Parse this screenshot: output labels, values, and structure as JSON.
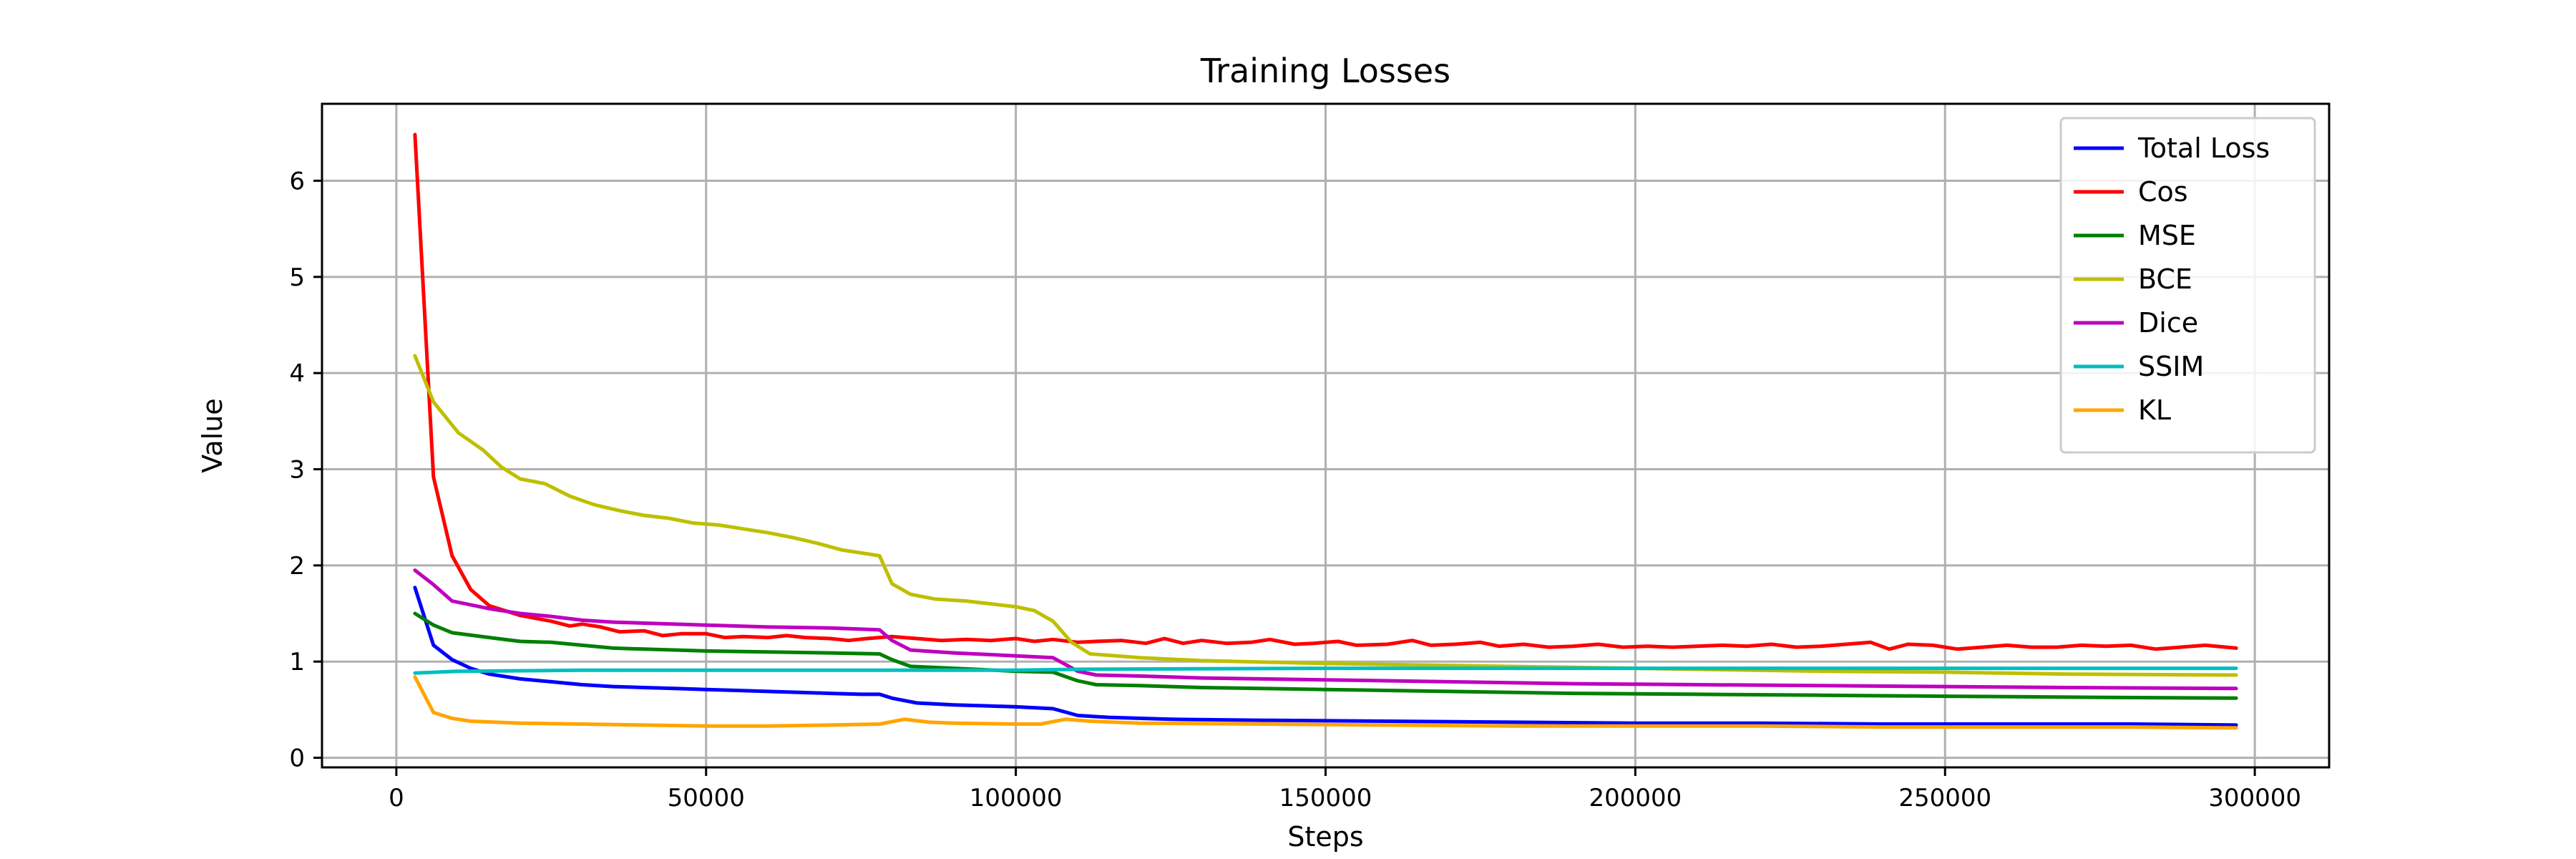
{
  "chart_data": {
    "type": "line",
    "title": "Training Losses",
    "xlabel": "Steps",
    "ylabel": "Value",
    "xlim": [
      -12000,
      312000
    ],
    "ylim": [
      -0.1,
      6.8
    ],
    "xticks": [
      0,
      50000,
      100000,
      150000,
      200000,
      250000,
      300000
    ],
    "xtick_labels": [
      "0",
      "50000",
      "100000",
      "150000",
      "200000",
      "250000",
      "300000"
    ],
    "yticks": [
      0,
      1,
      2,
      3,
      4,
      5,
      6
    ],
    "ytick_labels": [
      "0",
      "1",
      "2",
      "3",
      "4",
      "5",
      "6"
    ],
    "grid": true,
    "legend_position": "top-right",
    "series": [
      {
        "name": "Total Loss",
        "color": "#0000ff",
        "points": [
          [
            3000,
            1.77
          ],
          [
            6000,
            1.17
          ],
          [
            9000,
            1.02
          ],
          [
            12000,
            0.93
          ],
          [
            15000,
            0.87
          ],
          [
            20000,
            0.82
          ],
          [
            25000,
            0.79
          ],
          [
            30000,
            0.76
          ],
          [
            35000,
            0.74
          ],
          [
            40000,
            0.73
          ],
          [
            45000,
            0.72
          ],
          [
            50000,
            0.71
          ],
          [
            55000,
            0.7
          ],
          [
            60000,
            0.69
          ],
          [
            65000,
            0.68
          ],
          [
            70000,
            0.67
          ],
          [
            75000,
            0.66
          ],
          [
            78000,
            0.66
          ],
          [
            80000,
            0.62
          ],
          [
            84000,
            0.57
          ],
          [
            90000,
            0.55
          ],
          [
            95000,
            0.54
          ],
          [
            100000,
            0.53
          ],
          [
            106000,
            0.51
          ],
          [
            110000,
            0.44
          ],
          [
            115000,
            0.42
          ],
          [
            125000,
            0.4
          ],
          [
            140000,
            0.39
          ],
          [
            160000,
            0.38
          ],
          [
            180000,
            0.37
          ],
          [
            200000,
            0.36
          ],
          [
            220000,
            0.36
          ],
          [
            240000,
            0.35
          ],
          [
            260000,
            0.35
          ],
          [
            280000,
            0.35
          ],
          [
            297000,
            0.34
          ]
        ]
      },
      {
        "name": "Cos",
        "color": "#ff0000",
        "points": [
          [
            3000,
            6.48
          ],
          [
            6000,
            2.92
          ],
          [
            9000,
            2.1
          ],
          [
            12000,
            1.75
          ],
          [
            15000,
            1.58
          ],
          [
            20000,
            1.48
          ],
          [
            25000,
            1.42
          ],
          [
            28000,
            1.37
          ],
          [
            30000,
            1.39
          ],
          [
            33000,
            1.36
          ],
          [
            36000,
            1.31
          ],
          [
            40000,
            1.32
          ],
          [
            43000,
            1.27
          ],
          [
            46000,
            1.29
          ],
          [
            50000,
            1.29
          ],
          [
            53000,
            1.25
          ],
          [
            56000,
            1.26
          ],
          [
            60000,
            1.25
          ],
          [
            63000,
            1.27
          ],
          [
            66000,
            1.25
          ],
          [
            70000,
            1.24
          ],
          [
            73000,
            1.22
          ],
          [
            76000,
            1.24
          ],
          [
            80000,
            1.26
          ],
          [
            84000,
            1.24
          ],
          [
            88000,
            1.22
          ],
          [
            92000,
            1.23
          ],
          [
            96000,
            1.22
          ],
          [
            100000,
            1.24
          ],
          [
            103000,
            1.21
          ],
          [
            106000,
            1.23
          ],
          [
            110000,
            1.2
          ],
          [
            113000,
            1.21
          ],
          [
            117000,
            1.22
          ],
          [
            121000,
            1.19
          ],
          [
            124000,
            1.24
          ],
          [
            127000,
            1.19
          ],
          [
            130000,
            1.22
          ],
          [
            134000,
            1.19
          ],
          [
            138000,
            1.2
          ],
          [
            141000,
            1.23
          ],
          [
            145000,
            1.18
          ],
          [
            148000,
            1.19
          ],
          [
            152000,
            1.21
          ],
          [
            155000,
            1.17
          ],
          [
            160000,
            1.18
          ],
          [
            164000,
            1.22
          ],
          [
            167000,
            1.17
          ],
          [
            171000,
            1.18
          ],
          [
            175000,
            1.2
          ],
          [
            178000,
            1.16
          ],
          [
            182000,
            1.18
          ],
          [
            186000,
            1.15
          ],
          [
            190000,
            1.16
          ],
          [
            194000,
            1.18
          ],
          [
            198000,
            1.15
          ],
          [
            202000,
            1.16
          ],
          [
            206000,
            1.15
          ],
          [
            210000,
            1.16
          ],
          [
            214000,
            1.17
          ],
          [
            218000,
            1.16
          ],
          [
            222000,
            1.18
          ],
          [
            226000,
            1.15
          ],
          [
            230000,
            1.16
          ],
          [
            234000,
            1.18
          ],
          [
            238000,
            1.2
          ],
          [
            241000,
            1.13
          ],
          [
            244000,
            1.18
          ],
          [
            248000,
            1.17
          ],
          [
            252000,
            1.13
          ],
          [
            256000,
            1.15
          ],
          [
            260000,
            1.17
          ],
          [
            264000,
            1.15
          ],
          [
            268000,
            1.15
          ],
          [
            272000,
            1.17
          ],
          [
            276000,
            1.16
          ],
          [
            280000,
            1.17
          ],
          [
            284000,
            1.13
          ],
          [
            288000,
            1.15
          ],
          [
            292000,
            1.17
          ],
          [
            297000,
            1.14
          ]
        ]
      },
      {
        "name": "MSE",
        "color": "#008000",
        "points": [
          [
            3000,
            1.5
          ],
          [
            6000,
            1.38
          ],
          [
            9000,
            1.3
          ],
          [
            15000,
            1.25
          ],
          [
            20000,
            1.21
          ],
          [
            25000,
            1.2
          ],
          [
            30000,
            1.17
          ],
          [
            35000,
            1.14
          ],
          [
            40000,
            1.13
          ],
          [
            50000,
            1.11
          ],
          [
            60000,
            1.1
          ],
          [
            70000,
            1.09
          ],
          [
            78000,
            1.08
          ],
          [
            80000,
            1.02
          ],
          [
            83000,
            0.95
          ],
          [
            90000,
            0.93
          ],
          [
            100000,
            0.9
          ],
          [
            106000,
            0.89
          ],
          [
            110000,
            0.8
          ],
          [
            113000,
            0.76
          ],
          [
            120000,
            0.75
          ],
          [
            130000,
            0.73
          ],
          [
            150000,
            0.71
          ],
          [
            170000,
            0.69
          ],
          [
            190000,
            0.67
          ],
          [
            210000,
            0.66
          ],
          [
            230000,
            0.65
          ],
          [
            250000,
            0.64
          ],
          [
            270000,
            0.63
          ],
          [
            297000,
            0.62
          ]
        ]
      },
      {
        "name": "BCE",
        "color": "#bfbf00",
        "points": [
          [
            3000,
            4.18
          ],
          [
            6000,
            3.7
          ],
          [
            10000,
            3.38
          ],
          [
            14000,
            3.2
          ],
          [
            17000,
            3.02
          ],
          [
            20000,
            2.9
          ],
          [
            24000,
            2.85
          ],
          [
            28000,
            2.72
          ],
          [
            32000,
            2.63
          ],
          [
            36000,
            2.57
          ],
          [
            40000,
            2.52
          ],
          [
            44000,
            2.49
          ],
          [
            48000,
            2.44
          ],
          [
            52000,
            2.42
          ],
          [
            56000,
            2.38
          ],
          [
            60000,
            2.34
          ],
          [
            64000,
            2.29
          ],
          [
            68000,
            2.23
          ],
          [
            72000,
            2.16
          ],
          [
            76000,
            2.12
          ],
          [
            78000,
            2.1
          ],
          [
            80000,
            1.81
          ],
          [
            83000,
            1.7
          ],
          [
            87000,
            1.65
          ],
          [
            92000,
            1.63
          ],
          [
            96000,
            1.6
          ],
          [
            100000,
            1.57
          ],
          [
            103000,
            1.53
          ],
          [
            106000,
            1.42
          ],
          [
            109000,
            1.2
          ],
          [
            112000,
            1.08
          ],
          [
            120000,
            1.04
          ],
          [
            130000,
            1.01
          ],
          [
            150000,
            0.98
          ],
          [
            170000,
            0.96
          ],
          [
            190000,
            0.94
          ],
          [
            210000,
            0.92
          ],
          [
            230000,
            0.9
          ],
          [
            250000,
            0.89
          ],
          [
            270000,
            0.87
          ],
          [
            297000,
            0.86
          ]
        ]
      },
      {
        "name": "Dice",
        "color": "#bf00bf",
        "points": [
          [
            3000,
            1.95
          ],
          [
            6000,
            1.8
          ],
          [
            9000,
            1.63
          ],
          [
            15000,
            1.55
          ],
          [
            20000,
            1.5
          ],
          [
            25000,
            1.47
          ],
          [
            30000,
            1.43
          ],
          [
            35000,
            1.41
          ],
          [
            40000,
            1.4
          ],
          [
            50000,
            1.38
          ],
          [
            60000,
            1.36
          ],
          [
            70000,
            1.35
          ],
          [
            78000,
            1.33
          ],
          [
            80000,
            1.22
          ],
          [
            83000,
            1.12
          ],
          [
            90000,
            1.09
          ],
          [
            100000,
            1.06
          ],
          [
            106000,
            1.04
          ],
          [
            110000,
            0.9
          ],
          [
            113000,
            0.86
          ],
          [
            120000,
            0.85
          ],
          [
            130000,
            0.83
          ],
          [
            150000,
            0.81
          ],
          [
            170000,
            0.79
          ],
          [
            190000,
            0.77
          ],
          [
            210000,
            0.76
          ],
          [
            230000,
            0.75
          ],
          [
            250000,
            0.74
          ],
          [
            270000,
            0.73
          ],
          [
            297000,
            0.72
          ]
        ]
      },
      {
        "name": "SSIM",
        "color": "#00bfbf",
        "points": [
          [
            3000,
            0.88
          ],
          [
            10000,
            0.9
          ],
          [
            30000,
            0.91
          ],
          [
            60000,
            0.91
          ],
          [
            80000,
            0.91
          ],
          [
            100000,
            0.91
          ],
          [
            110000,
            0.92
          ],
          [
            150000,
            0.93
          ],
          [
            200000,
            0.93
          ],
          [
            250000,
            0.93
          ],
          [
            297000,
            0.93
          ]
        ]
      },
      {
        "name": "KL",
        "color": "#ffa500",
        "points": [
          [
            3000,
            0.84
          ],
          [
            6000,
            0.47
          ],
          [
            9000,
            0.41
          ],
          [
            12000,
            0.38
          ],
          [
            20000,
            0.36
          ],
          [
            30000,
            0.35
          ],
          [
            40000,
            0.34
          ],
          [
            50000,
            0.33
          ],
          [
            60000,
            0.33
          ],
          [
            70000,
            0.34
          ],
          [
            78000,
            0.35
          ],
          [
            82000,
            0.4
          ],
          [
            86000,
            0.37
          ],
          [
            90000,
            0.36
          ],
          [
            100000,
            0.35
          ],
          [
            104000,
            0.35
          ],
          [
            108000,
            0.4
          ],
          [
            112000,
            0.38
          ],
          [
            120000,
            0.36
          ],
          [
            140000,
            0.35
          ],
          [
            160000,
            0.34
          ],
          [
            180000,
            0.33
          ],
          [
            200000,
            0.33
          ],
          [
            220000,
            0.33
          ],
          [
            240000,
            0.32
          ],
          [
            260000,
            0.32
          ],
          [
            280000,
            0.32
          ],
          [
            297000,
            0.31
          ]
        ]
      }
    ]
  }
}
